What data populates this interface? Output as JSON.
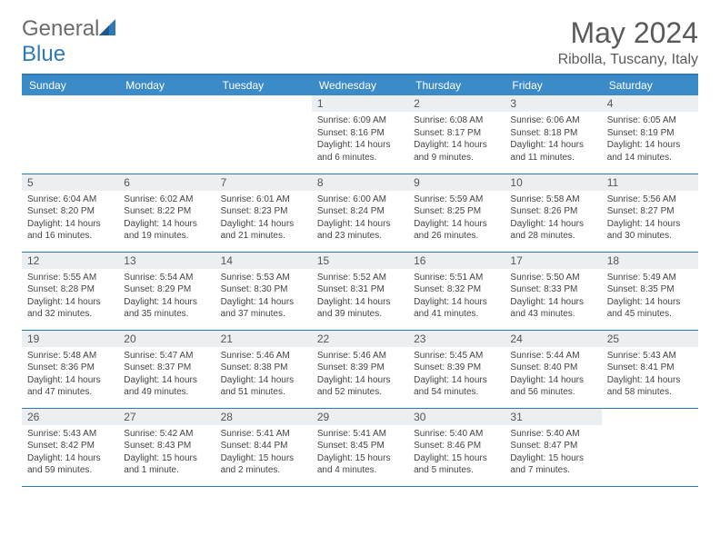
{
  "brand": {
    "name_part1": "General",
    "name_part2": "Blue",
    "accent": "#2e7ab8",
    "gray": "#6b6b6b"
  },
  "header": {
    "month": "May 2024",
    "location": "Ribolla, Tuscany, Italy"
  },
  "calendar": {
    "header_bg": "#3b8bc9",
    "header_fg": "#ffffff",
    "daynum_bg": "#eceff1",
    "rule_color": "#2e7ab8",
    "font_size_header": 12,
    "font_size_daynum": 12,
    "font_size_body": 10,
    "columns": [
      "Sunday",
      "Monday",
      "Tuesday",
      "Wednesday",
      "Thursday",
      "Friday",
      "Saturday"
    ],
    "weeks": [
      [
        {
          "n": "",
          "sr": "",
          "ss": "",
          "dl": ""
        },
        {
          "n": "",
          "sr": "",
          "ss": "",
          "dl": ""
        },
        {
          "n": "",
          "sr": "",
          "ss": "",
          "dl": ""
        },
        {
          "n": "1",
          "sr": "6:09 AM",
          "ss": "8:16 PM",
          "dl": "14 hours and 6 minutes."
        },
        {
          "n": "2",
          "sr": "6:08 AM",
          "ss": "8:17 PM",
          "dl": "14 hours and 9 minutes."
        },
        {
          "n": "3",
          "sr": "6:06 AM",
          "ss": "8:18 PM",
          "dl": "14 hours and 11 minutes."
        },
        {
          "n": "4",
          "sr": "6:05 AM",
          "ss": "8:19 PM",
          "dl": "14 hours and 14 minutes."
        }
      ],
      [
        {
          "n": "5",
          "sr": "6:04 AM",
          "ss": "8:20 PM",
          "dl": "14 hours and 16 minutes."
        },
        {
          "n": "6",
          "sr": "6:02 AM",
          "ss": "8:22 PM",
          "dl": "14 hours and 19 minutes."
        },
        {
          "n": "7",
          "sr": "6:01 AM",
          "ss": "8:23 PM",
          "dl": "14 hours and 21 minutes."
        },
        {
          "n": "8",
          "sr": "6:00 AM",
          "ss": "8:24 PM",
          "dl": "14 hours and 23 minutes."
        },
        {
          "n": "9",
          "sr": "5:59 AM",
          "ss": "8:25 PM",
          "dl": "14 hours and 26 minutes."
        },
        {
          "n": "10",
          "sr": "5:58 AM",
          "ss": "8:26 PM",
          "dl": "14 hours and 28 minutes."
        },
        {
          "n": "11",
          "sr": "5:56 AM",
          "ss": "8:27 PM",
          "dl": "14 hours and 30 minutes."
        }
      ],
      [
        {
          "n": "12",
          "sr": "5:55 AM",
          "ss": "8:28 PM",
          "dl": "14 hours and 32 minutes."
        },
        {
          "n": "13",
          "sr": "5:54 AM",
          "ss": "8:29 PM",
          "dl": "14 hours and 35 minutes."
        },
        {
          "n": "14",
          "sr": "5:53 AM",
          "ss": "8:30 PM",
          "dl": "14 hours and 37 minutes."
        },
        {
          "n": "15",
          "sr": "5:52 AM",
          "ss": "8:31 PM",
          "dl": "14 hours and 39 minutes."
        },
        {
          "n": "16",
          "sr": "5:51 AM",
          "ss": "8:32 PM",
          "dl": "14 hours and 41 minutes."
        },
        {
          "n": "17",
          "sr": "5:50 AM",
          "ss": "8:33 PM",
          "dl": "14 hours and 43 minutes."
        },
        {
          "n": "18",
          "sr": "5:49 AM",
          "ss": "8:35 PM",
          "dl": "14 hours and 45 minutes."
        }
      ],
      [
        {
          "n": "19",
          "sr": "5:48 AM",
          "ss": "8:36 PM",
          "dl": "14 hours and 47 minutes."
        },
        {
          "n": "20",
          "sr": "5:47 AM",
          "ss": "8:37 PM",
          "dl": "14 hours and 49 minutes."
        },
        {
          "n": "21",
          "sr": "5:46 AM",
          "ss": "8:38 PM",
          "dl": "14 hours and 51 minutes."
        },
        {
          "n": "22",
          "sr": "5:46 AM",
          "ss": "8:39 PM",
          "dl": "14 hours and 52 minutes."
        },
        {
          "n": "23",
          "sr": "5:45 AM",
          "ss": "8:39 PM",
          "dl": "14 hours and 54 minutes."
        },
        {
          "n": "24",
          "sr": "5:44 AM",
          "ss": "8:40 PM",
          "dl": "14 hours and 56 minutes."
        },
        {
          "n": "25",
          "sr": "5:43 AM",
          "ss": "8:41 PM",
          "dl": "14 hours and 58 minutes."
        }
      ],
      [
        {
          "n": "26",
          "sr": "5:43 AM",
          "ss": "8:42 PM",
          "dl": "14 hours and 59 minutes."
        },
        {
          "n": "27",
          "sr": "5:42 AM",
          "ss": "8:43 PM",
          "dl": "15 hours and 1 minute."
        },
        {
          "n": "28",
          "sr": "5:41 AM",
          "ss": "8:44 PM",
          "dl": "15 hours and 2 minutes."
        },
        {
          "n": "29",
          "sr": "5:41 AM",
          "ss": "8:45 PM",
          "dl": "15 hours and 4 minutes."
        },
        {
          "n": "30",
          "sr": "5:40 AM",
          "ss": "8:46 PM",
          "dl": "15 hours and 5 minutes."
        },
        {
          "n": "31",
          "sr": "5:40 AM",
          "ss": "8:47 PM",
          "dl": "15 hours and 7 minutes."
        },
        {
          "n": "",
          "sr": "",
          "ss": "",
          "dl": ""
        }
      ]
    ]
  }
}
